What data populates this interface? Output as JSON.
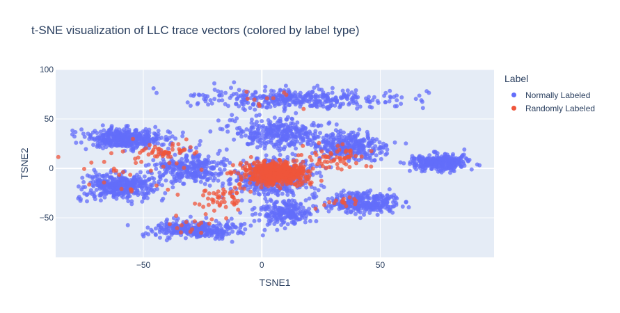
{
  "chart_data": {
    "type": "scatter",
    "title": "t-SNE visualization of LLC trace vectors (colored by label type)",
    "xlabel": "TSNE1",
    "ylabel": "TSNE2",
    "xlim": [
      -87,
      98
    ],
    "ylim": [
      -90,
      100
    ],
    "xticks": [
      -50,
      0,
      50
    ],
    "yticks": [
      -50,
      0,
      50,
      100
    ],
    "grid": true,
    "plot_bgcolor": "#e5ecf6",
    "legend": {
      "title": "Label",
      "placement": "top-right-outside"
    },
    "series": [
      {
        "name": "Normally Labeled",
        "color": "#636efa",
        "clusters": [
          {
            "center": [
              -58,
              30
            ],
            "spread": [
              12,
              7
            ],
            "count": 420
          },
          {
            "center": [
              -60,
              -18
            ],
            "spread": [
              11,
              9
            ],
            "count": 380
          },
          {
            "center": [
              -28,
              -62
            ],
            "spread": [
              13,
              6
            ],
            "count": 340
          },
          {
            "center": [
              -30,
              0
            ],
            "spread": [
              11,
              12
            ],
            "count": 300
          },
          {
            "center": [
              15,
              70
            ],
            "spread": [
              32,
              7
            ],
            "count": 380
          },
          {
            "center": [
              8,
              35
            ],
            "spread": [
              14,
              11
            ],
            "count": 320
          },
          {
            "center": [
              6,
              -10
            ],
            "spread": [
              12,
              14
            ],
            "count": 420
          },
          {
            "center": [
              10,
              -45
            ],
            "spread": [
              8,
              8
            ],
            "count": 200
          },
          {
            "center": [
              37,
              22
            ],
            "spread": [
              12,
              9
            ],
            "count": 300
          },
          {
            "center": [
              43,
              -35
            ],
            "spread": [
              11,
              8
            ],
            "count": 300
          },
          {
            "center": [
              75,
              6
            ],
            "spread": [
              9,
              6
            ],
            "count": 300
          }
        ]
      },
      {
        "name": "Randomly Labeled",
        "color": "#ef553b",
        "clusters": [
          {
            "center": [
              6,
              -5
            ],
            "spread": [
              10,
              8
            ],
            "count": 520
          },
          {
            "center": [
              -40,
              18
            ],
            "spread": [
              6,
              5
            ],
            "count": 40
          },
          {
            "center": [
              -15,
              -30
            ],
            "spread": [
              10,
              10
            ],
            "count": 50
          },
          {
            "center": [
              30,
              10
            ],
            "spread": [
              10,
              10
            ],
            "count": 60
          },
          {
            "center": [
              -55,
              0
            ],
            "spread": [
              20,
              20
            ],
            "count": 40
          },
          {
            "center": [
              35,
              -35
            ],
            "spread": [
              8,
              6
            ],
            "count": 15
          },
          {
            "center": [
              -30,
              -55
            ],
            "spread": [
              10,
              8
            ],
            "count": 15
          },
          {
            "center": [
              0,
              70
            ],
            "spread": [
              12,
              8
            ],
            "count": 10
          }
        ]
      }
    ]
  }
}
